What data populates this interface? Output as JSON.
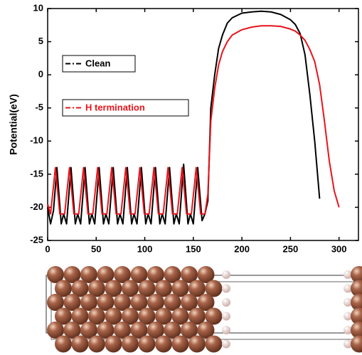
{
  "chart_data": {
    "type": "line",
    "y_label": "Potential(eV)",
    "xlim": [
      0,
      320
    ],
    "xticks": [
      0,
      50,
      100,
      150,
      200,
      250,
      300
    ],
    "ylim": [
      -25,
      10
    ],
    "yticks": [
      -25,
      -20,
      -15,
      -10,
      -5,
      0,
      5,
      10
    ],
    "grid": false,
    "legend": "left",
    "series": [
      {
        "name": "Clean",
        "color": "#000000",
        "x": [
          0,
          3,
          6,
          9.5,
          14,
          16.5,
          19.5,
          24,
          28.5,
          31,
          34,
          38.5,
          43,
          45.5,
          48.5,
          53,
          57.5,
          60,
          63,
          67.5,
          72,
          74.5,
          77.5,
          82,
          86.5,
          89,
          92,
          96.5,
          101,
          103.5,
          106.5,
          111,
          115.5,
          118,
          121,
          125.5,
          130,
          132.5,
          135.5,
          140,
          144.5,
          147,
          150,
          154.5,
          159,
          162,
          165,
          168,
          172,
          176,
          180,
          185,
          190,
          200,
          210,
          220,
          230,
          240,
          250,
          255,
          260,
          265,
          270,
          275,
          280
        ],
        "values": [
          -20,
          -22.5,
          -20.5,
          -14,
          -22.5,
          -21,
          -22.5,
          -14,
          -22.5,
          -21,
          -22.5,
          -14,
          -22.5,
          -21,
          -22.5,
          -14,
          -22.5,
          -21,
          -22.5,
          -14,
          -22.5,
          -21,
          -22.5,
          -14,
          -22.5,
          -21,
          -22.5,
          -14,
          -22.5,
          -21,
          -22.5,
          -14,
          -22.5,
          -21,
          -22.5,
          -14,
          -22.5,
          -21,
          -22.5,
          -13.5,
          -22.5,
          -21,
          -22.5,
          -14,
          -22,
          -21,
          -19,
          -5,
          0,
          4,
          6,
          7.8,
          8.6,
          9.3,
          9.5,
          9.6,
          9.5,
          9.1,
          8.3,
          7.6,
          6.2,
          3,
          -3,
          -10,
          -18.7
        ]
      },
      {
        "name": "H termination",
        "color": "#e8141b",
        "x": [
          0,
          3,
          8,
          12.5,
          17.5,
          22.5,
          27,
          32,
          37,
          41.5,
          46.5,
          51.5,
          56,
          61,
          66,
          70.5,
          75.5,
          80.5,
          85,
          90,
          95,
          99.5,
          104.5,
          109.5,
          114,
          119,
          124,
          128.5,
          133.5,
          138.5,
          143,
          148,
          153,
          157.5,
          162,
          165,
          168,
          172,
          176,
          180,
          185,
          190,
          200,
          210,
          220,
          230,
          240,
          250,
          255,
          260,
          265,
          270,
          275,
          280,
          285,
          290,
          295,
          300
        ],
        "values": [
          -19.5,
          -21,
          -14,
          -21,
          -21,
          -14,
          -21,
          -21,
          -14,
          -21,
          -21,
          -14,
          -21,
          -21,
          -14,
          -21,
          -21,
          -14,
          -21,
          -21,
          -14,
          -21,
          -21,
          -14,
          -21,
          -21,
          -14,
          -21,
          -21,
          -14,
          -21,
          -21,
          -14,
          -21,
          -21,
          -18,
          -7,
          -2,
          1.5,
          3.5,
          5,
          6,
          6.8,
          7.2,
          7.4,
          7.4,
          7.3,
          6.9,
          6.6,
          6,
          5.2,
          3.8,
          2,
          -1.5,
          -7,
          -13,
          -17.5,
          -20
        ]
      }
    ]
  }
}
